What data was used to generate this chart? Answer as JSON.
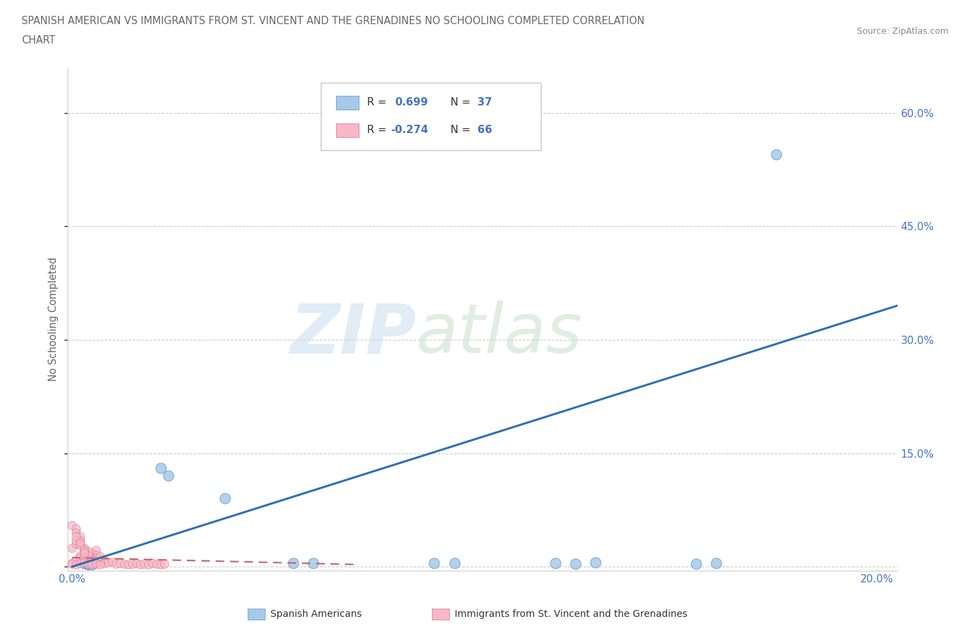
{
  "title_line1": "SPANISH AMERICAN VS IMMIGRANTS FROM ST. VINCENT AND THE GRENADINES NO SCHOOLING COMPLETED CORRELATION",
  "title_line2": "CHART",
  "source": "Source: ZipAtlas.com",
  "ylabel": "No Schooling Completed",
  "xlim": [
    -0.001,
    0.205
  ],
  "ylim": [
    -0.005,
    0.66
  ],
  "x_ticks": [
    0.0,
    0.05,
    0.1,
    0.15,
    0.2
  ],
  "y_ticks": [
    0.0,
    0.15,
    0.3,
    0.45,
    0.6
  ],
  "blue_color": "#a8c8e8",
  "blue_edge": "#5590c0",
  "pink_color": "#f8b8c8",
  "pink_edge": "#d07080",
  "trend_blue": "#3070b0",
  "trend_pink": "#c06070",
  "blue_trend_x": [
    0.0,
    0.205
  ],
  "blue_trend_y": [
    0.0,
    0.345
  ],
  "pink_trend_x": [
    0.0,
    0.07
  ],
  "pink_trend_y": [
    0.012,
    0.003
  ],
  "blue_scatter_x": [
    0.003,
    0.004,
    0.005,
    0.003,
    0.004,
    0.022,
    0.024,
    0.038,
    0.055,
    0.06,
    0.09,
    0.095,
    0.12,
    0.125,
    0.13,
    0.155,
    0.16,
    0.175,
    0.003,
    0.004,
    0.005
  ],
  "blue_scatter_y": [
    0.005,
    0.003,
    0.004,
    0.008,
    0.006,
    0.13,
    0.12,
    0.09,
    0.005,
    0.005,
    0.005,
    0.005,
    0.005,
    0.004,
    0.006,
    0.004,
    0.005,
    0.545,
    0.005,
    0.004,
    0.003
  ],
  "pink_scatter_x_close": [
    0.0,
    0.001,
    0.001,
    0.002,
    0.002,
    0.002,
    0.003,
    0.003,
    0.003,
    0.004,
    0.004,
    0.005,
    0.005,
    0.006,
    0.006,
    0.007,
    0.007,
    0.008,
    0.0,
    0.001,
    0.002,
    0.003,
    0.004,
    0.005,
    0.006,
    0.007,
    0.0,
    0.001,
    0.002,
    0.003,
    0.004,
    0.005,
    0.001,
    0.002,
    0.003,
    0.004,
    0.005,
    0.006,
    0.001,
    0.002,
    0.003,
    0.008,
    0.009,
    0.01,
    0.011,
    0.012,
    0.013,
    0.014,
    0.015,
    0.016,
    0.017,
    0.018,
    0.019,
    0.02,
    0.021,
    0.022,
    0.023,
    0.0,
    0.001,
    0.002,
    0.003,
    0.004,
    0.005,
    0.006,
    0.007
  ],
  "pink_scatter_y_close": [
    0.055,
    0.05,
    0.045,
    0.04,
    0.035,
    0.03,
    0.025,
    0.02,
    0.015,
    0.01,
    0.008,
    0.012,
    0.018,
    0.022,
    0.016,
    0.01,
    0.006,
    0.008,
    0.025,
    0.03,
    0.015,
    0.01,
    0.02,
    0.008,
    0.012,
    0.014,
    0.005,
    0.008,
    0.012,
    0.018,
    0.006,
    0.01,
    0.035,
    0.028,
    0.022,
    0.015,
    0.008,
    0.005,
    0.04,
    0.032,
    0.018,
    0.005,
    0.006,
    0.007,
    0.004,
    0.005,
    0.004,
    0.003,
    0.004,
    0.005,
    0.003,
    0.004,
    0.003,
    0.005,
    0.004,
    0.003,
    0.004,
    0.004,
    0.003,
    0.005,
    0.006,
    0.004,
    0.003,
    0.004,
    0.003
  ]
}
